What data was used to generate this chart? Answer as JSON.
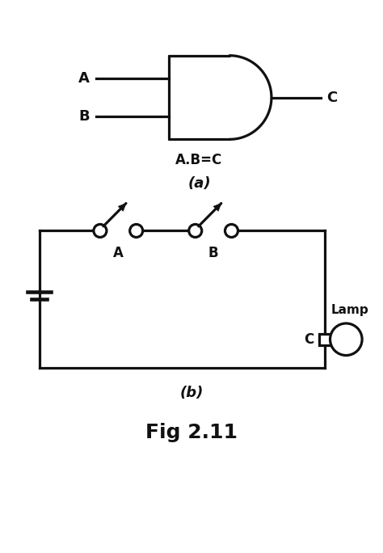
{
  "bg_color": "#ffffff",
  "line_color": "#111111",
  "lw": 2.3,
  "fig_width": 4.74,
  "fig_height": 6.84,
  "title": "Fig 2.11",
  "label_a_paren": "(a)",
  "label_b_paren": "(b)",
  "equation": "A.B=C",
  "lamp_label": "Lamp",
  "switch_a_label": "A",
  "switch_b_label": "B",
  "input_a": "A",
  "input_b": "B",
  "output_c": "C",
  "c_circuit": "C"
}
